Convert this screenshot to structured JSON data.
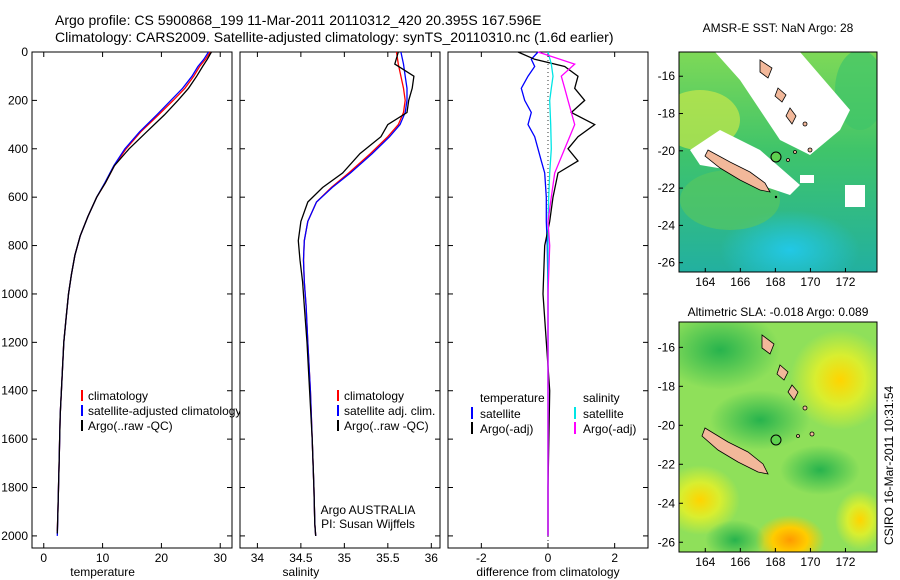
{
  "header": {
    "line1": "Argo profile: CS 5900868_199 11-Mar-2011 20110312_420 20.395S 167.596E",
    "line2": "Climatology: CARS2009. Satellite-adjusted climatology: synTS_20110310.nc (1.6d earlier)"
  },
  "credit": "CSIRO 16-Mar-2011 10:31:54",
  "colors": {
    "climatology": "#ff0000",
    "satellite": "#0000ff",
    "argo": "#000000",
    "cyan": "#00e5e5",
    "magenta": "#ff00ff"
  },
  "chart_data": [
    {
      "type": "line",
      "xlabel": "temperature",
      "xlim": [
        -2,
        32
      ],
      "xticks": [
        0,
        10,
        20,
        30
      ],
      "ylim": [
        0,
        2050
      ],
      "yticks": [
        0,
        200,
        400,
        600,
        800,
        1000,
        1200,
        1400,
        1600,
        1800,
        2000
      ],
      "ylabel_reversed": true,
      "legend": [
        "climatology",
        "satellite-adjusted climatology",
        "Argo(..raw -QC)"
      ],
      "series": [
        {
          "name": "climatology",
          "color": "#ff0000",
          "x": [
            28.3,
            27.5,
            26.5,
            25.5,
            24.0,
            22.0,
            19.5,
            16.5,
            14.0,
            12.0,
            10.5,
            9.0,
            7.5,
            6.2,
            5.3,
            4.7,
            4.2,
            3.8,
            3.4,
            3.1,
            2.8,
            2.6,
            2.4,
            2.3
          ],
          "y": [
            0,
            30,
            60,
            100,
            150,
            200,
            260,
            330,
            400,
            470,
            540,
            600,
            680,
            760,
            840,
            920,
            1000,
            1100,
            1200,
            1350,
            1500,
            1700,
            1900,
            1980
          ]
        },
        {
          "name": "satellite-adjusted climatology",
          "color": "#0000ff",
          "x": [
            28.0,
            27.2,
            26.2,
            25.2,
            23.6,
            21.6,
            19.2,
            16.3,
            13.8,
            11.9,
            10.4,
            9.0,
            7.5,
            6.2,
            5.3,
            4.7,
            4.2,
            3.8,
            3.4,
            3.1,
            2.8,
            2.6,
            2.4,
            2.3
          ],
          "y": [
            0,
            30,
            60,
            100,
            150,
            200,
            260,
            330,
            400,
            470,
            540,
            600,
            680,
            760,
            840,
            920,
            1000,
            1100,
            1200,
            1350,
            1500,
            1700,
            1900,
            2000
          ]
        },
        {
          "name": "Argo(..raw -QC)",
          "color": "#000000",
          "x": [
            28.5,
            27.8,
            27.0,
            26.0,
            24.6,
            22.8,
            20.5,
            17.5,
            14.5,
            12.0,
            10.5,
            9.0,
            7.5,
            6.2,
            5.3,
            4.7,
            4.2,
            3.8,
            3.4,
            3.1,
            2.8,
            2.6,
            2.4,
            2.3
          ],
          "y": [
            0,
            30,
            60,
            100,
            150,
            200,
            260,
            330,
            400,
            470,
            540,
            600,
            680,
            760,
            840,
            920,
            1000,
            1100,
            1200,
            1350,
            1500,
            1700,
            1900,
            1990
          ]
        }
      ]
    },
    {
      "type": "line",
      "xlabel": "salinity",
      "xlim": [
        33.8,
        36.1
      ],
      "xticks": [
        34,
        34.5,
        35,
        35.5,
        36
      ],
      "ylim": [
        0,
        2050
      ],
      "legend": [
        "climatology",
        "satellite adj. clim.",
        "Argo(..raw -QC)"
      ],
      "annotation": [
        "Argo AUSTRALIA",
        "PI: Susan Wijffels"
      ],
      "series": [
        {
          "name": "climatology",
          "color": "#ff0000",
          "x": [
            35.6,
            35.62,
            35.65,
            35.68,
            35.7,
            35.68,
            35.62,
            35.5,
            35.3,
            35.05,
            34.85,
            34.68,
            34.58,
            34.54,
            34.53,
            34.54,
            34.56,
            34.58,
            34.61,
            34.63,
            34.65,
            34.66,
            34.67
          ],
          "y": [
            0,
            50,
            100,
            150,
            200,
            250,
            300,
            350,
            420,
            500,
            560,
            620,
            700,
            780,
            860,
            950,
            1050,
            1200,
            1400,
            1600,
            1800,
            1950,
            2000
          ]
        },
        {
          "name": "satellite adj. clim.",
          "color": "#0000ff",
          "x": [
            35.65,
            35.68,
            35.7,
            35.72,
            35.72,
            35.7,
            35.64,
            35.52,
            35.32,
            35.07,
            34.86,
            34.68,
            34.58,
            34.54,
            34.53,
            34.54,
            34.56,
            34.58,
            34.61,
            34.63,
            34.65,
            34.66,
            34.67
          ],
          "y": [
            0,
            50,
            100,
            150,
            200,
            250,
            300,
            350,
            420,
            500,
            560,
            620,
            700,
            780,
            860,
            950,
            1050,
            1200,
            1400,
            1600,
            1800,
            1950,
            2000
          ]
        },
        {
          "name": "Argo(..raw -QC)",
          "color": "#000000",
          "x": [
            35.62,
            35.58,
            35.8,
            35.78,
            35.74,
            35.72,
            35.5,
            35.42,
            35.18,
            34.98,
            34.75,
            34.58,
            34.5,
            34.47,
            34.49,
            34.52,
            34.54,
            34.57,
            34.6,
            34.63,
            34.65,
            34.66,
            34.67
          ],
          "y": [
            0,
            50,
            100,
            150,
            200,
            250,
            300,
            350,
            420,
            500,
            560,
            620,
            700,
            780,
            860,
            950,
            1050,
            1200,
            1400,
            1600,
            1800,
            1950,
            2000
          ]
        }
      ]
    },
    {
      "type": "line",
      "xlabel": "difference from climatology",
      "xlim": [
        -3,
        3
      ],
      "xticks": [
        -2,
        0,
        2
      ],
      "ylim": [
        0,
        2050
      ],
      "legend_headers": [
        "temperature",
        "salinity"
      ],
      "legend": [
        "satellite",
        "Argo(-adj)",
        "satellite",
        "Argo(-adj)"
      ],
      "series": [
        {
          "name": "satellite",
          "group": "temperature",
          "color": "#0000ff",
          "x": [
            -0.3,
            -0.5,
            -0.4,
            -0.6,
            -0.8,
            -0.7,
            -0.5,
            -0.6,
            -0.4,
            -0.3,
            -0.2,
            -0.1,
            -0.05,
            -0.05,
            -0.02,
            0,
            0,
            0,
            0
          ],
          "y": [
            0,
            30,
            60,
            100,
            150,
            200,
            250,
            300,
            350,
            400,
            450,
            500,
            600,
            700,
            800,
            1000,
            1400,
            1800,
            2000
          ]
        },
        {
          "name": "Argo(-adj)",
          "group": "temperature",
          "color": "#000000",
          "x": [
            -0.9,
            -0.4,
            0.5,
            0.9,
            0.8,
            1.1,
            0.7,
            1.4,
            0.9,
            0.6,
            0.9,
            0.3,
            0.15,
            0.05,
            -0.1,
            -0.15,
            0.05,
            0,
            0
          ],
          "y": [
            0,
            30,
            60,
            100,
            150,
            200,
            250,
            300,
            350,
            400,
            450,
            500,
            600,
            700,
            800,
            1000,
            1400,
            1800,
            2000
          ]
        },
        {
          "name": "satellite",
          "group": "salinity",
          "color": "#00e5e5",
          "x": [
            0.0,
            0.1,
            0.15,
            0.1,
            0.05,
            0.08,
            0.1,
            0.05,
            0.02,
            0,
            0,
            0,
            0,
            0,
            0
          ],
          "y": [
            0,
            50,
            100,
            150,
            200,
            300,
            400,
            500,
            600,
            700,
            800,
            1000,
            1400,
            1800,
            2000
          ]
        },
        {
          "name": "Argo(-adj)",
          "group": "salinity",
          "color": "#ff00ff",
          "x": [
            -0.3,
            0.8,
            0.4,
            0.5,
            0.6,
            0.8,
            0.5,
            0.2,
            0.1,
            0,
            0.05,
            0,
            0,
            0,
            0
          ],
          "y": [
            0,
            50,
            100,
            150,
            200,
            300,
            400,
            500,
            600,
            700,
            800,
            1000,
            1400,
            1800,
            2000
          ]
        }
      ]
    },
    {
      "type": "heatmap",
      "title": "AMSR-E SST: NaN Argo: 28",
      "xlim": [
        162.5,
        173.8
      ],
      "xticks": [
        164,
        166,
        168,
        170,
        172
      ],
      "ylim": [
        -26.5,
        -14.7
      ],
      "yticks": [
        -16,
        -18,
        -20,
        -22,
        -24,
        -26
      ],
      "float_position": {
        "lon": 167.596,
        "lat": -20.395
      }
    },
    {
      "type": "heatmap",
      "title": "Altimetric SLA: -0.018 Argo: 0.089",
      "xlim": [
        162.5,
        173.8
      ],
      "xticks": [
        164,
        166,
        168,
        170,
        172
      ],
      "ylim": [
        -26.5,
        -14.7
      ],
      "yticks": [
        -16,
        -18,
        -20,
        -22,
        -24,
        -26
      ],
      "float_position": {
        "lon": 167.596,
        "lat": -20.395
      }
    }
  ]
}
